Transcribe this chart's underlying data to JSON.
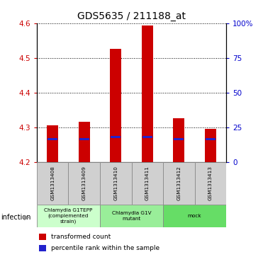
{
  "title": "GDS5635 / 211188_at",
  "samples": [
    "GSM1313408",
    "GSM1313409",
    "GSM1313410",
    "GSM1313411",
    "GSM1313412",
    "GSM1313413"
  ],
  "bar_values": [
    4.305,
    4.315,
    4.525,
    4.593,
    4.325,
    4.295
  ],
  "bar_base": 4.2,
  "blue_marker_values": [
    4.265,
    4.265,
    4.272,
    4.272,
    4.265,
    4.265
  ],
  "ylim": [
    4.2,
    4.6
  ],
  "yticks_left": [
    4.2,
    4.3,
    4.4,
    4.5,
    4.6
  ],
  "yticks_right": [
    0,
    25,
    50,
    75,
    100
  ],
  "ytick_right_labels": [
    "0",
    "25",
    "50",
    "75",
    "100%"
  ],
  "bar_color": "#cc0000",
  "blue_color": "#2222cc",
  "left_yaxis_color": "#cc0000",
  "right_yaxis_color": "#0000cc",
  "infection_groups": [
    {
      "label": "Chlamydia G1TEPP\n(complemented\nstrain)",
      "indices": [
        0,
        1
      ],
      "color": "#ccffcc"
    },
    {
      "label": "Chlamydia G1V\nmutant",
      "indices": [
        2,
        3
      ],
      "color": "#99ee99"
    },
    {
      "label": "mock",
      "indices": [
        4,
        5
      ],
      "color": "#66dd66"
    }
  ],
  "infection_label": "infection",
  "legend_items": [
    {
      "label": "transformed count",
      "color": "#cc0000"
    },
    {
      "label": "percentile rank within the sample",
      "color": "#2222cc"
    }
  ],
  "bar_width": 0.35,
  "title_fontsize": 10
}
